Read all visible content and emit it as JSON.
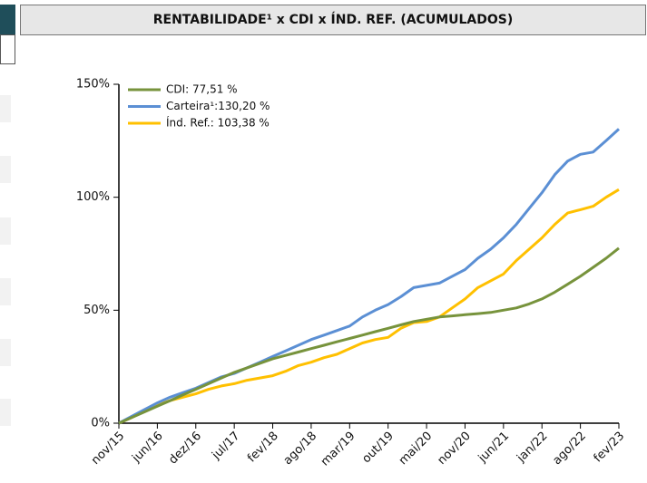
{
  "chart_data": {
    "type": "line",
    "title": "RENTABILIDADE¹ x CDI x ÍND. REF. (ACUMULADOS)",
    "categories": [
      "nov/15",
      null,
      null,
      "jun/16",
      null,
      null,
      "dez/16",
      null,
      null,
      "jul/17",
      null,
      null,
      "fev/18",
      null,
      null,
      "ago/18",
      null,
      null,
      "mar/19",
      null,
      null,
      "out/19",
      null,
      null,
      "mai/20",
      null,
      null,
      "nov/20",
      null,
      null,
      "jun/21",
      null,
      null,
      "jan/22",
      null,
      null,
      "ago/22",
      null,
      null,
      "fev/23"
    ],
    "series": [
      {
        "name": "CDI: 77,51 %",
        "color": "#77933c",
        "values": [
          0,
          2.5,
          5,
          7.5,
          10,
          12.5,
          15,
          17.5,
          20,
          22.5,
          24.5,
          26.5,
          28.5,
          30,
          31.5,
          33,
          34.5,
          36,
          37.5,
          39,
          40.5,
          42,
          43.5,
          45,
          46,
          47,
          47.5,
          48,
          48.5,
          49,
          50,
          51,
          52.8,
          55,
          58,
          61.5,
          65,
          69,
          73,
          77.5
        ]
      },
      {
        "name": "Carteira¹:130,20 %",
        "color": "#5b8fd4",
        "values": [
          0,
          3,
          6,
          9,
          11.5,
          13.5,
          15.5,
          18,
          20.5,
          22,
          24.5,
          27,
          29.5,
          32,
          34.5,
          37,
          39,
          41,
          43,
          47,
          50,
          52.5,
          56,
          60,
          61,
          62,
          65,
          68,
          73,
          77,
          82,
          88,
          95,
          102,
          110,
          116,
          119,
          120,
          125,
          130.2
        ]
      },
      {
        "name": "Índ. Ref.: 103,38 %",
        "color": "#ffc000",
        "values": [
          0,
          2.5,
          5.5,
          8,
          10,
          11.5,
          13,
          15,
          16.5,
          17.5,
          19,
          20,
          21,
          23,
          25.5,
          27,
          29,
          30.5,
          33,
          35.5,
          37,
          38,
          42,
          44.5,
          45,
          47,
          51,
          55,
          60,
          63,
          66,
          72,
          77,
          82,
          88,
          93,
          94.5,
          96,
          100,
          103.4
        ]
      }
    ],
    "ylim": [
      0,
      150
    ],
    "yticks": [
      {
        "value": 0,
        "label": "0%"
      },
      {
        "value": 50,
        "label": "50%"
      },
      {
        "value": 100,
        "label": "100%"
      },
      {
        "value": 150,
        "label": "150%"
      }
    ]
  }
}
